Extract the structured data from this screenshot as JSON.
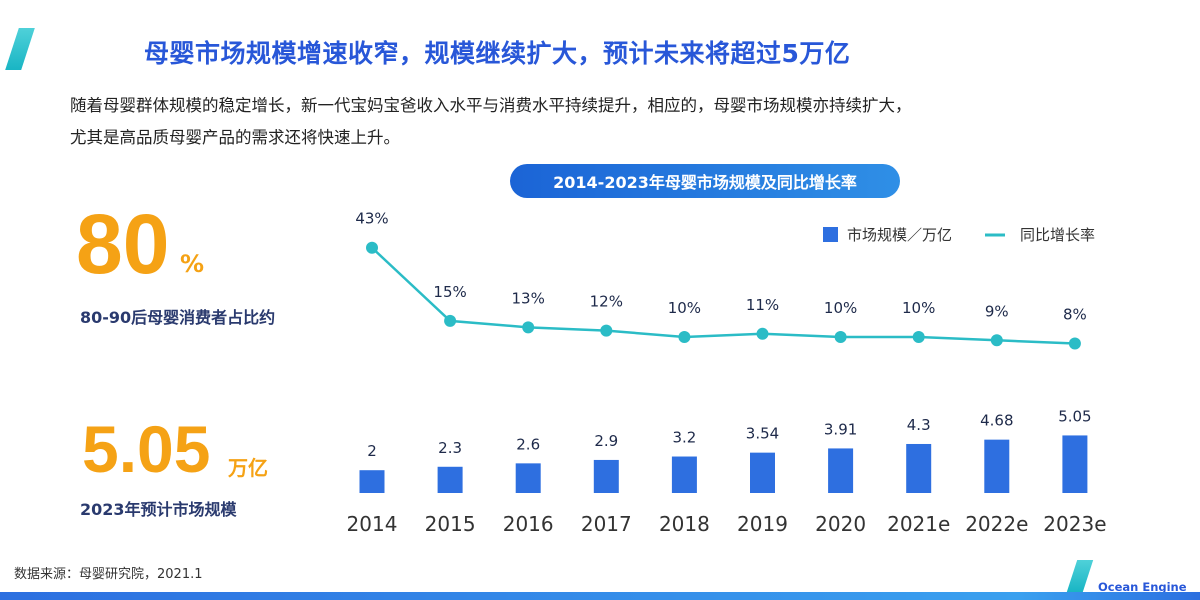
{
  "header": {
    "title": "母婴市场规模增速收窄，规模继续扩大，预计未来将超过5万亿"
  },
  "intro": {
    "line1": "随着母婴群体规模的稳定增长，新一代宝妈宝爸收入水平与消费水平持续提升，相应的，母婴市场规模亦持续扩大，",
    "line2": "尤其是高品质母婴产品的需求还将快速上升。"
  },
  "stats": {
    "stat1": {
      "value": "80",
      "unit": "%",
      "label": "80-90后母婴消费者占比约"
    },
    "stat2": {
      "value": "5.05",
      "unit": "万亿",
      "label": "2023年预计市场规模"
    }
  },
  "footer": {
    "source": "数据来源：母婴研究院，2021.1",
    "brand": "Ocean Engine"
  },
  "colors": {
    "bar": "#2e6fe0",
    "line": "#2bbcc6",
    "accent": "#f5a215",
    "title": "#2857d8"
  },
  "chart_data": {
    "type": "bar+line",
    "title": "2014-2023年母婴市场规模及同比增长率",
    "categories": [
      "2014",
      "2015",
      "2016",
      "2017",
      "2018",
      "2019",
      "2020",
      "2021e",
      "2022e",
      "2023e"
    ],
    "series": [
      {
        "name": "市场规模／万亿",
        "type": "bar",
        "values": [
          2,
          2.3,
          2.6,
          2.9,
          3.2,
          3.54,
          3.91,
          4.3,
          4.68,
          5.05
        ],
        "labels": [
          "2",
          "2.3",
          "2.6",
          "2.9",
          "3.2",
          "3.54",
          "3.91",
          "4.3",
          "4.68",
          "5.05"
        ]
      },
      {
        "name": "同比增长率",
        "type": "line",
        "values": [
          43,
          15,
          13,
          12,
          10,
          11,
          10,
          10,
          9,
          8
        ],
        "labels": [
          "43%",
          "15%",
          "13%",
          "12%",
          "10%",
          "11%",
          "10%",
          "10%",
          "9%",
          "8%"
        ]
      }
    ],
    "legend": "top-right",
    "grid": false
  }
}
